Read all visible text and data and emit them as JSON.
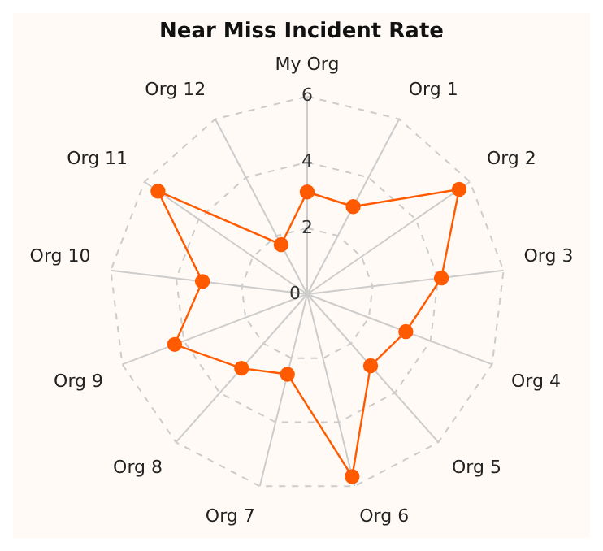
{
  "chart_data": {
    "type": "radar",
    "title": "Near Miss Incident Rate",
    "categories": [
      "My Org",
      "Org 1",
      "Org 2",
      "Org 3",
      "Org 4",
      "Org 5",
      "Org 6",
      "Org 7",
      "Org 8",
      "Org 9",
      "Org 10",
      "Org 11",
      "Org 12"
    ],
    "series": [
      {
        "color": "#ff5a00",
        "values": [
          3.1,
          3.0,
          5.6,
          4.1,
          3.2,
          2.9,
          5.7,
          2.5,
          3.0,
          4.3,
          3.2,
          5.5,
          1.7
        ]
      }
    ],
    "ylim": [
      0,
      6
    ],
    "yticks": [
      0,
      2,
      4,
      6
    ],
    "grid": true,
    "legend": false,
    "marker": "circle",
    "line_style": "solid"
  }
}
